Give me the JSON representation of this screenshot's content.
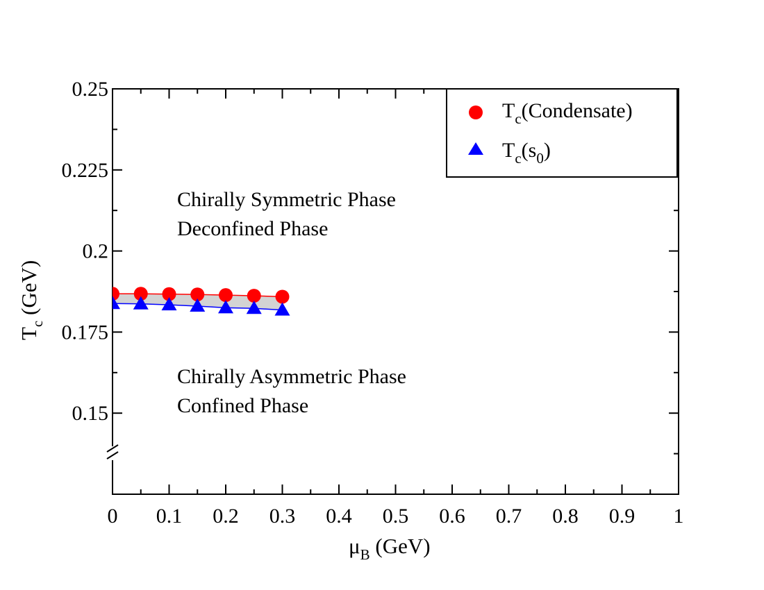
{
  "chart_data": {
    "type": "scatter",
    "title": "",
    "xlabel": {
      "main": "μ",
      "sub": "B",
      "rest": " (GeV)"
    },
    "ylabel": {
      "main": "T",
      "sub": "c",
      "rest": " (GeV)"
    },
    "xlim": [
      0,
      1
    ],
    "ylim": [
      0.125,
      0.25
    ],
    "x_ticks": [
      0,
      0.1,
      0.2,
      0.3,
      0.4,
      0.5,
      0.6,
      0.7,
      0.8,
      0.9,
      1
    ],
    "x_tick_labels": [
      "0",
      "0.1",
      "0.2",
      "0.3",
      "0.4",
      "0.5",
      "0.6",
      "0.7",
      "0.8",
      "0.9",
      "1"
    ],
    "y_ticks": [
      0.15,
      0.175,
      0.2,
      0.225,
      0.25
    ],
    "y_tick_labels": [
      "0.15",
      "0.175",
      "0.2",
      "0.225",
      "0.25"
    ],
    "axis_break": "y-axis break near 0.137",
    "x": [
      0,
      0.05,
      0.1,
      0.15,
      0.2,
      0.25,
      0.3
    ],
    "series": [
      {
        "name": "Tc(Condensate)",
        "legend_main": "T",
        "legend_sub": "c",
        "legend_rest": "(Condensate)",
        "marker": "circle",
        "color": "#ff0000",
        "values": [
          0.1868,
          0.1868,
          0.1867,
          0.1866,
          0.1864,
          0.1862,
          0.1859
        ]
      },
      {
        "name": "Tc(s0)",
        "legend_main": "T",
        "legend_sub": "c",
        "legend_rest1": "(s",
        "legend_sub2": "0",
        "legend_rest2": ")",
        "marker": "triangle",
        "color": "#0000ff",
        "values": [
          0.1838,
          0.1837,
          0.1834,
          0.183,
          0.1825,
          0.1823,
          0.1818
        ]
      }
    ],
    "band_fill": "#d3d3d3",
    "legend_position": "top-right",
    "annotations": [
      {
        "line1": "Chirally Symmetric Phase",
        "line2": "Deconfined Phase",
        "x": 0.115,
        "y": 0.2138
      },
      {
        "line1": "Chirally Asymmetric Phase",
        "line2": "Confined Phase",
        "x": 0.115,
        "y": 0.159
      }
    ]
  }
}
